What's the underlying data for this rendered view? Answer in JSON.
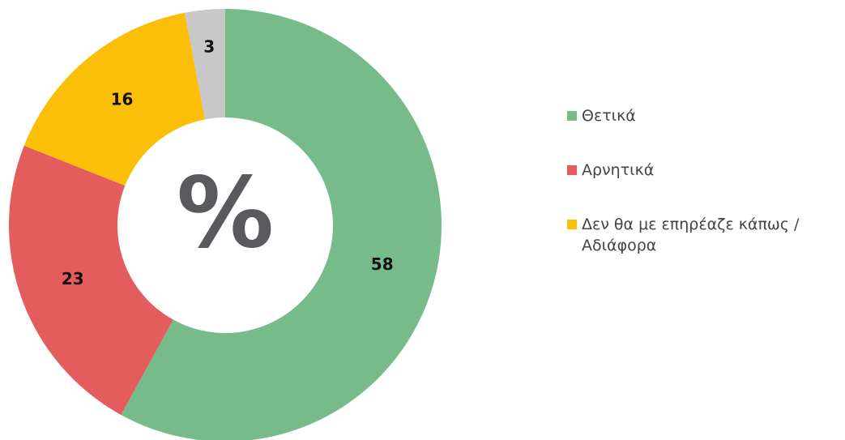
{
  "chart_data": {
    "type": "donut",
    "categories": [
      "Θετικά",
      "Αρνητικά",
      "Δεν θα με επηρέαζε κάπως / Αδιάφορα",
      null
    ],
    "values": [
      58,
      23,
      16,
      3
    ],
    "colors": [
      "#77bb8b",
      "#e35d5f",
      "#fbbf0a",
      "#c8c8c8"
    ],
    "center_label": "%",
    "legend": "right"
  }
}
